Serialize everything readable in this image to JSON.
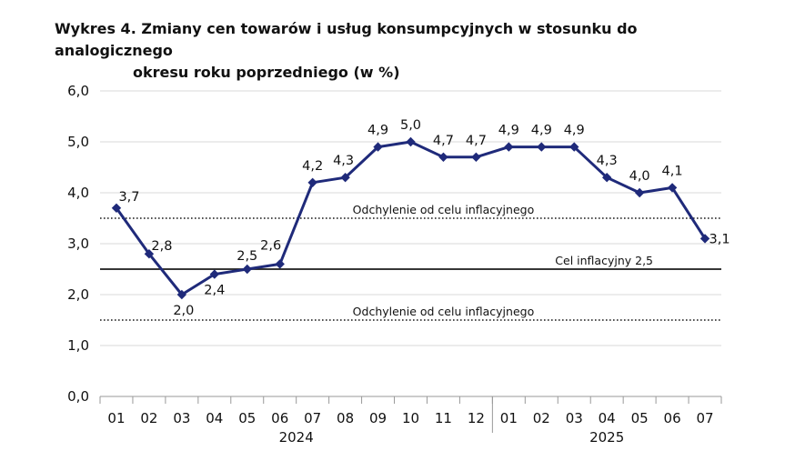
{
  "title_line1": "Wykres 4. Zmiany cen towarów i usług konsumpcyjnych w stosunku do analogicznego",
  "title_line2": "okresu roku poprzedniego (w %)",
  "chart_data": {
    "type": "line",
    "title": "Wykres 4. Zmiany cen towarów i usług konsumpcyjnych w stosunku do analogicznego okresu roku poprzedniego (w %)",
    "categories": [
      "01",
      "02",
      "03",
      "04",
      "05",
      "06",
      "07",
      "08",
      "09",
      "10",
      "11",
      "12",
      "01",
      "02",
      "03",
      "04",
      "05",
      "06",
      "07"
    ],
    "years": [
      {
        "label": "2024",
        "from": 0,
        "to": 11
      },
      {
        "label": "2025",
        "from": 12,
        "to": 18
      }
    ],
    "series": [
      {
        "values": [
          3.7,
          2.8,
          2.0,
          2.4,
          2.5,
          2.6,
          4.2,
          4.3,
          4.9,
          5.0,
          4.7,
          4.7,
          4.9,
          4.9,
          4.9,
          4.3,
          4.0,
          4.1,
          3.1
        ],
        "labels": [
          "3,7",
          "2,8",
          "2,0",
          "2,4",
          "2,5",
          "2,6",
          "4,2",
          "4,3",
          "4,9",
          "5,0",
          "4,7",
          "4,7",
          "4,9",
          "4,9",
          "4,9",
          "4,3",
          "4,0",
          "4,1",
          "3,1"
        ],
        "color": "#1f2a7a"
      }
    ],
    "yticks": [
      "0,0",
      "1,0",
      "2,0",
      "3,0",
      "4,0",
      "5,0",
      "6,0"
    ],
    "ylim": [
      0,
      6
    ],
    "grid": true,
    "reference_lines": [
      {
        "value": 3.5,
        "label": "Odchylenie od celu inflacyjnego",
        "style": "dotted"
      },
      {
        "value": 2.5,
        "label": "Cel inflacyjny 2,5",
        "style": "solid"
      },
      {
        "value": 1.5,
        "label": "Odchylenie od celu inflacyjnego",
        "style": "dotted"
      }
    ],
    "gridColor": "#d9d9d9",
    "axisColor": "#999999"
  }
}
